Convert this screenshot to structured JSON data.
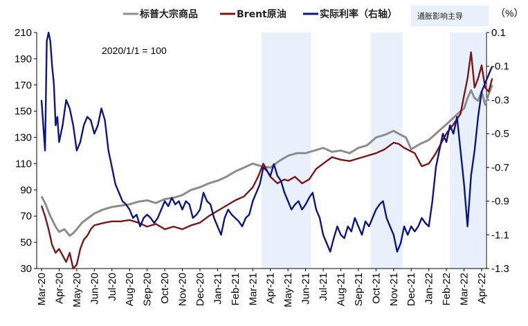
{
  "chart_data": {
    "type": "line",
    "title": "",
    "annotation": "2020/1/1 = 100",
    "unit_right": "（%）",
    "legend_box": "通胀影响主导",
    "colors": {
      "spgsci": "#8c8c8c",
      "brent": "#7b1414",
      "real_rate": "#0d1580",
      "shade": "#e8f0fb"
    },
    "x_ticks": [
      "Mar-20",
      "Apr-20",
      "May-20",
      "Jun-20",
      "Jul-20",
      "Aug-20",
      "Sep-20",
      "Oct-20",
      "Nov-20",
      "Dec-20",
      "Jan-21",
      "Feb-21",
      "Mar-21",
      "Apr-21",
      "May-21",
      "Jun-21",
      "Jul-21",
      "Aug-21",
      "Sep-21",
      "Oct-21",
      "Nov-21",
      "Dec-21",
      "Jan-22",
      "Feb-22",
      "Mar-22",
      "Apr-22"
    ],
    "y_left": {
      "min": 30,
      "max": 210,
      "ticks": [
        210,
        190,
        170,
        150,
        130,
        110,
        90,
        70,
        50,
        30
      ]
    },
    "y_right": {
      "min": -1.3,
      "max": 0.1,
      "ticks": [
        "0.1",
        "-0.1",
        "-0.3",
        "-0.5",
        "-0.7",
        "-0.9",
        "-1.1",
        "-1.3"
      ]
    },
    "shaded_periods": [
      {
        "start": 12.5,
        "end": 15.3
      },
      {
        "start": 18.7,
        "end": 20.5
      },
      {
        "start": 23.2,
        "end": 25.2
      }
    ],
    "series": [
      {
        "name": "标普大宗商品",
        "axis": "left",
        "x": [
          0,
          0.2,
          0.5,
          0.8,
          1.0,
          1.3,
          1.6,
          1.8,
          2.0,
          2.3,
          2.6,
          3.0,
          3.5,
          4.0,
          4.5,
          5.0,
          5.5,
          6.0,
          6.5,
          7.0,
          7.5,
          8.0,
          8.5,
          9.0,
          9.5,
          10.0,
          10.5,
          11.0,
          11.5,
          12.0,
          12.5,
          13.0,
          13.5,
          14.0,
          14.5,
          15.0,
          15.5,
          16.0,
          16.5,
          17.0,
          17.5,
          18.0,
          18.5,
          19.0,
          19.5,
          20.0,
          20.4,
          20.7,
          21.0,
          21.5,
          22.0,
          22.5,
          23.0,
          23.4,
          23.8,
          24.0,
          24.2,
          24.4,
          24.6,
          24.8,
          25.0,
          25.2,
          25.4,
          25.6
        ],
        "values": [
          85,
          80,
          70,
          62,
          58,
          60,
          55,
          57,
          60,
          65,
          68,
          72,
          75,
          77,
          78,
          79,
          81,
          82,
          80,
          83,
          84,
          86,
          90,
          92,
          95,
          97,
          100,
          104,
          107,
          110,
          108,
          107,
          112,
          116,
          118,
          118,
          120,
          122,
          119,
          120,
          118,
          122,
          124,
          130,
          132,
          135,
          132,
          130,
          121,
          125,
          128,
          134,
          140,
          145,
          150,
          152,
          160,
          166,
          160,
          158,
          165,
          155,
          163,
          170
        ],
        "labels": []
      },
      {
        "name": "Brent原油",
        "axis": "left",
        "x": [
          0,
          0.2,
          0.4,
          0.6,
          0.8,
          1.0,
          1.2,
          1.4,
          1.6,
          1.8,
          2.0,
          2.2,
          2.4,
          2.6,
          2.8,
          3.0,
          3.3,
          3.6,
          4.0,
          4.5,
          5.0,
          5.5,
          6.0,
          6.5,
          7.0,
          7.5,
          8.0,
          8.5,
          9.0,
          9.5,
          10.0,
          10.5,
          11.0,
          11.5,
          12.0,
          12.3,
          12.6,
          13.0,
          13.4,
          13.8,
          14.0,
          14.4,
          14.8,
          15.2,
          15.6,
          16.0,
          16.5,
          17.0,
          17.5,
          18.0,
          18.5,
          19.0,
          19.5,
          20.0,
          20.3,
          20.6,
          20.9,
          21.2,
          21.6,
          22.0,
          22.4,
          22.8,
          23.0,
          23.4,
          23.8,
          24.0,
          24.2,
          24.4,
          24.6,
          24.8,
          25.0,
          25.2,
          25.4,
          25.6
        ],
        "values": [
          78,
          70,
          60,
          48,
          42,
          45,
          40,
          35,
          42,
          30,
          33,
          45,
          52,
          55,
          60,
          63,
          64,
          65,
          66,
          66,
          67,
          65,
          62,
          64,
          60,
          62,
          60,
          63,
          65,
          70,
          74,
          78,
          82,
          85,
          92,
          100,
          110,
          100,
          95,
          98,
          97,
          100,
          95,
          98,
          106,
          110,
          115,
          113,
          112,
          114,
          116,
          118,
          121,
          126,
          125,
          122,
          120,
          118,
          108,
          110,
          118,
          128,
          133,
          140,
          148,
          162,
          175,
          195,
          168,
          175,
          185,
          168,
          165,
          175
        ],
        "labels": []
      },
      {
        "name": "实际利率（右轴）",
        "axis": "right",
        "x": [
          0,
          0.1,
          0.2,
          0.3,
          0.4,
          0.5,
          0.6,
          0.7,
          0.8,
          0.9,
          1.0,
          1.2,
          1.4,
          1.6,
          1.8,
          2.0,
          2.2,
          2.4,
          2.6,
          2.8,
          3.0,
          3.2,
          3.4,
          3.6,
          3.8,
          4.0,
          4.2,
          4.4,
          4.6,
          4.8,
          5.0,
          5.2,
          5.4,
          5.6,
          5.8,
          6.0,
          6.2,
          6.4,
          6.6,
          6.8,
          7.0,
          7.2,
          7.4,
          7.6,
          7.8,
          8.0,
          8.2,
          8.4,
          8.6,
          8.8,
          9.0,
          9.2,
          9.4,
          9.6,
          9.8,
          10.0,
          10.2,
          10.4,
          10.6,
          10.8,
          11.0,
          11.2,
          11.4,
          11.6,
          11.8,
          12.0,
          12.2,
          12.4,
          12.6,
          12.8,
          13.0,
          13.2,
          13.4,
          13.6,
          13.8,
          14.0,
          14.2,
          14.4,
          14.6,
          14.8,
          15.0,
          15.2,
          15.4,
          15.6,
          15.8,
          16.0,
          16.2,
          16.4,
          16.6,
          16.8,
          17.0,
          17.2,
          17.4,
          17.6,
          17.8,
          18.0,
          18.2,
          18.4,
          18.6,
          18.8,
          19.0,
          19.2,
          19.4,
          19.6,
          19.8,
          20.0,
          20.2,
          20.4,
          20.6,
          20.8,
          21.0,
          21.2,
          21.4,
          21.6,
          21.8,
          22.0,
          22.2,
          22.4,
          22.6,
          22.8,
          23.0,
          23.2,
          23.4,
          23.6,
          23.8,
          24.0,
          24.2,
          24.4,
          24.6,
          24.8,
          25.0,
          25.2,
          25.4,
          25.6
        ],
        "values": [
          -0.3,
          -0.45,
          -0.6,
          0.05,
          0.1,
          0.05,
          -0.1,
          -0.2,
          -0.45,
          -0.4,
          -0.55,
          -0.45,
          -0.3,
          -0.35,
          -0.45,
          -0.6,
          -0.55,
          -0.45,
          -0.4,
          -0.42,
          -0.5,
          -0.45,
          -0.35,
          -0.42,
          -0.6,
          -0.7,
          -0.8,
          -0.85,
          -0.9,
          -0.92,
          -0.95,
          -1.0,
          -0.98,
          -1.05,
          -1.0,
          -0.98,
          -1.0,
          -1.03,
          -1.0,
          -0.95,
          -0.9,
          -0.93,
          -0.88,
          -0.92,
          -0.9,
          -0.95,
          -0.9,
          -0.92,
          -1.0,
          -0.98,
          -0.95,
          -0.85,
          -0.9,
          -0.92,
          -1.0,
          -1.05,
          -1.1,
          -1.0,
          -0.95,
          -0.98,
          -1.0,
          -1.02,
          -1.05,
          -1.0,
          -0.98,
          -0.9,
          -0.85,
          -0.8,
          -0.7,
          -0.72,
          -0.75,
          -0.68,
          -0.75,
          -0.78,
          -0.85,
          -0.9,
          -0.95,
          -0.92,
          -0.9,
          -0.95,
          -0.92,
          -0.88,
          -0.85,
          -0.95,
          -1.0,
          -1.1,
          -1.15,
          -1.2,
          -1.12,
          -1.05,
          -1.1,
          -1.12,
          -1.05,
          -1.08,
          -1.0,
          -1.05,
          -1.1,
          -1.02,
          -1.05,
          -1.0,
          -0.95,
          -0.92,
          -0.9,
          -1.0,
          -1.05,
          -1.1,
          -1.2,
          -1.15,
          -1.05,
          -1.1,
          -1.05,
          -1.08,
          -1.05,
          -1.0,
          -1.03,
          -1.05,
          -0.9,
          -0.7,
          -0.6,
          -0.5,
          -0.55,
          -0.45,
          -0.5,
          -0.4,
          -0.6,
          -0.8,
          -1.05,
          -0.75,
          -0.6,
          -0.4,
          -0.25,
          -0.2,
          -0.15,
          -0.1
        ]
      }
    ]
  }
}
